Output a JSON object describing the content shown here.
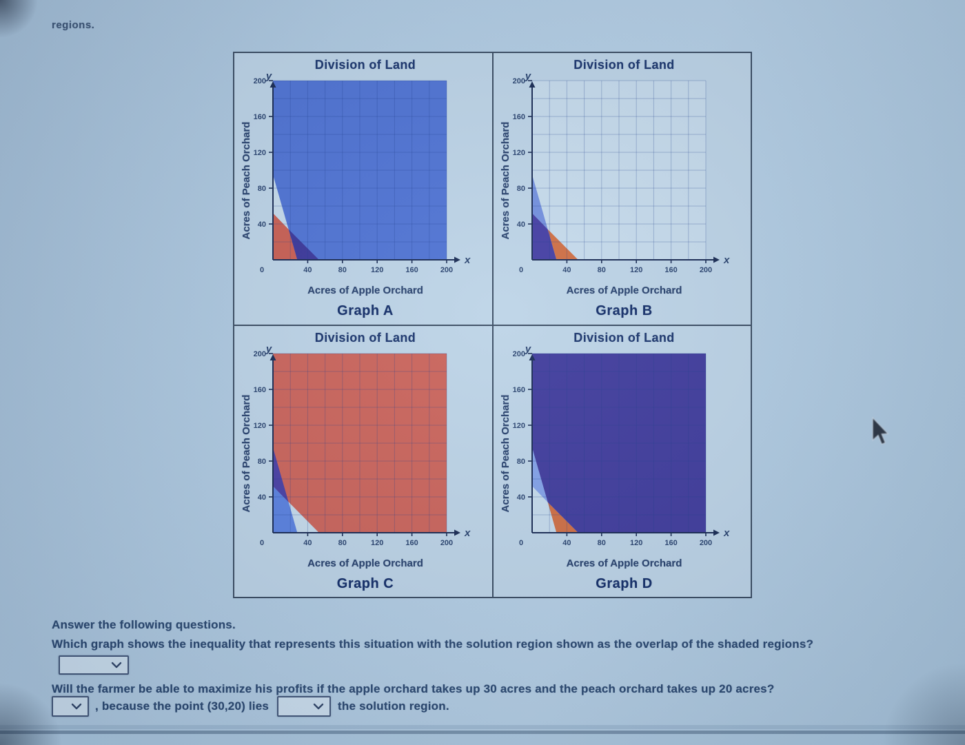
{
  "page": {
    "corner_text": "regions.",
    "background_color": "#b0cbe2",
    "panel_background": "#bdd4e7",
    "panel_border_color": "#3a4c62",
    "title_color": "#1c376f"
  },
  "questions": {
    "intro": "Answer the following questions.",
    "q1": "Which graph shows the inequality that represents this situation with the solution region shown as the overlap of the shaded regions?",
    "q2": "Will the farmer be able to maximize his profits if the apple orchard takes up 30 acres and the peach orchard takes up 20 acres?",
    "q3_mid": ", because the point (30,20) lies",
    "q3_end": "the solution region."
  },
  "dropdowns": {
    "q1_value": "",
    "q2_value": "",
    "q3_value": ""
  },
  "chart_data": [
    {
      "type": "area",
      "title": "Division of Land",
      "caption": "Graph A",
      "xlabel": "Acres of Apple Orchard",
      "ylabel": "Acres of Peach Orchard",
      "x_axis_letter": "x",
      "y_axis_letter": "y",
      "origin_label": "0",
      "xlim": [
        0,
        200
      ],
      "ylim": [
        0,
        200
      ],
      "xticks": [
        0,
        40,
        80,
        120,
        160,
        200
      ],
      "yticks": [
        40,
        80,
        120,
        160,
        200
      ],
      "grid_step": 20,
      "boundary_lines": [
        {
          "name": "steep-line",
          "points": [
            [
              0,
              95
            ],
            [
              28,
              0
            ]
          ]
        },
        {
          "name": "shallow-line",
          "points": [
            [
              0,
              52
            ],
            [
              53,
              0
            ]
          ]
        }
      ],
      "regions": [
        {
          "name": "blue-region",
          "role": "blue-only",
          "color": "#5074d4",
          "points": [
            [
              0,
              95
            ],
            [
              0,
              200
            ],
            [
              200,
              200
            ],
            [
              200,
              0
            ],
            [
              28,
              0
            ]
          ]
        },
        {
          "name": "red-region",
          "role": "red-only",
          "color": "#c96054",
          "points": [
            [
              0,
              0
            ],
            [
              0,
              52
            ],
            [
              18,
              34
            ],
            [
              28,
              0
            ]
          ]
        },
        {
          "name": "overlap-region",
          "role": "overlap",
          "color": "#3c389b",
          "points": [
            [
              18,
              34
            ],
            [
              53,
              0
            ],
            [
              28,
              0
            ]
          ]
        }
      ]
    },
    {
      "type": "area",
      "title": "Division of Land",
      "caption": "Graph B",
      "xlabel": "Acres of Apple Orchard",
      "ylabel": "Acres of Peach Orchard",
      "x_axis_letter": "x",
      "y_axis_letter": "y",
      "origin_label": "0",
      "xlim": [
        0,
        200
      ],
      "ylim": [
        0,
        200
      ],
      "xticks": [
        0,
        40,
        80,
        120,
        160,
        200
      ],
      "yticks": [
        40,
        80,
        120,
        160,
        200
      ],
      "grid_step": 20,
      "boundary_lines": [
        {
          "name": "steep-line",
          "points": [
            [
              0,
              95
            ],
            [
              28,
              0
            ]
          ]
        },
        {
          "name": "shallow-line",
          "points": [
            [
              0,
              52
            ],
            [
              53,
              0
            ]
          ]
        }
      ],
      "regions": [
        {
          "name": "blue-region",
          "role": "blue-only",
          "color": "#7390de",
          "points": [
            [
              0,
              52
            ],
            [
              0,
              95
            ],
            [
              18,
              34
            ]
          ]
        },
        {
          "name": "red-region",
          "role": "red-only",
          "color": "#cf6f45",
          "points": [
            [
              18,
              34
            ],
            [
              53,
              0
            ],
            [
              28,
              0
            ]
          ]
        },
        {
          "name": "overlap-region",
          "role": "overlap",
          "color": "#453fa4",
          "points": [
            [
              0,
              0
            ],
            [
              0,
              52
            ],
            [
              18,
              34
            ],
            [
              28,
              0
            ]
          ]
        }
      ]
    },
    {
      "type": "area",
      "title": "Division of Land",
      "caption": "Graph C",
      "xlabel": "Acres of Apple Orchard",
      "ylabel": "Acres of Peach Orchard",
      "x_axis_letter": "x",
      "y_axis_letter": "y",
      "origin_label": "0",
      "xlim": [
        0,
        200
      ],
      "ylim": [
        0,
        200
      ],
      "xticks": [
        0,
        40,
        80,
        120,
        160,
        200
      ],
      "yticks": [
        40,
        80,
        120,
        160,
        200
      ],
      "grid_step": 20,
      "boundary_lines": [
        {
          "name": "steep-line",
          "points": [
            [
              0,
              95
            ],
            [
              28,
              0
            ]
          ]
        },
        {
          "name": "shallow-line",
          "points": [
            [
              0,
              52
            ],
            [
              53,
              0
            ]
          ]
        }
      ],
      "regions": [
        {
          "name": "red-region",
          "role": "red-only",
          "color": "#cb655c",
          "points": [
            [
              0,
              52
            ],
            [
              0,
              200
            ],
            [
              200,
              200
            ],
            [
              200,
              0
            ],
            [
              53,
              0
            ]
          ]
        },
        {
          "name": "blue-region",
          "role": "blue-only",
          "color": "#5b82e0",
          "points": [
            [
              0,
              0
            ],
            [
              0,
              52
            ],
            [
              18,
              34
            ],
            [
              28,
              0
            ]
          ]
        },
        {
          "name": "overlap-region",
          "role": "overlap",
          "color": "#4b41a6",
          "points": [
            [
              0,
              52
            ],
            [
              0,
              95
            ],
            [
              18,
              34
            ]
          ]
        }
      ]
    },
    {
      "type": "area",
      "title": "Division of Land",
      "caption": "Graph D",
      "xlabel": "Acres of Apple Orchard",
      "ylabel": "Acres of Peach Orchard",
      "x_axis_letter": "x",
      "y_axis_letter": "y",
      "origin_label": "0",
      "xlim": [
        0,
        200
      ],
      "ylim": [
        0,
        200
      ],
      "xticks": [
        0,
        40,
        80,
        120,
        160,
        200
      ],
      "yticks": [
        40,
        80,
        120,
        160,
        200
      ],
      "grid_step": 20,
      "boundary_lines": [
        {
          "name": "steep-line",
          "points": [
            [
              0,
              95
            ],
            [
              28,
              0
            ]
          ]
        },
        {
          "name": "shallow-line",
          "points": [
            [
              0,
              52
            ],
            [
              53,
              0
            ]
          ]
        }
      ],
      "regions": [
        {
          "name": "blue-region",
          "role": "blue-only",
          "color": "#83a2e8",
          "points": [
            [
              0,
              52
            ],
            [
              0,
              95
            ],
            [
              18,
              34
            ]
          ]
        },
        {
          "name": "red-region",
          "role": "red-only",
          "color": "#cf6f45",
          "points": [
            [
              18,
              34
            ],
            [
              28,
              0
            ],
            [
              53,
              0
            ]
          ]
        },
        {
          "name": "overlap-region",
          "role": "overlap",
          "color": "#413d9d",
          "points": [
            [
              0,
              95
            ],
            [
              0,
              200
            ],
            [
              200,
              200
            ],
            [
              200,
              0
            ],
            [
              53,
              0
            ],
            [
              18,
              34
            ]
          ]
        }
      ]
    }
  ]
}
